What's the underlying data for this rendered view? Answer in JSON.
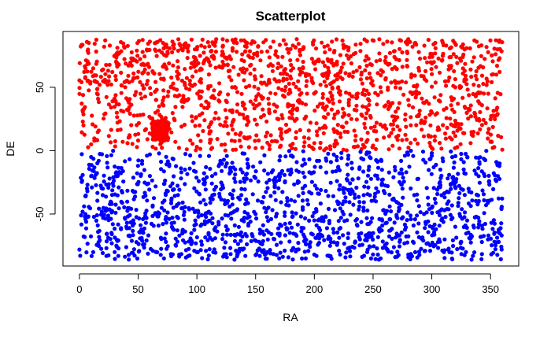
{
  "chart_data": {
    "type": "scatter",
    "title": "Scatterplot",
    "xlabel": "RA",
    "ylabel": "DE",
    "xlim": [
      -14,
      374
    ],
    "ylim": [
      -91,
      94
    ],
    "xticks": [
      0,
      50,
      100,
      150,
      200,
      250,
      300,
      350
    ],
    "yticks": [
      -50,
      0,
      50
    ],
    "grid": false,
    "legend": "none",
    "series": [
      {
        "color": "#ff0000",
        "x_range": [
          0,
          360
        ],
        "y_range": [
          0,
          88
        ],
        "approx_point_count": 1400,
        "values": [
          [
            8,
            85
          ],
          [
            22,
            87
          ],
          [
            38,
            82
          ],
          [
            60,
            86
          ],
          [
            75,
            78
          ],
          [
            100,
            80
          ],
          [
            122,
            82
          ],
          [
            134,
            85
          ],
          [
            185,
            88
          ],
          [
            215,
            86
          ],
          [
            262,
            86
          ],
          [
            280,
            88
          ],
          [
            303,
            85
          ],
          [
            325,
            82
          ],
          [
            356,
            80
          ],
          [
            5,
            58
          ],
          [
            15,
            45
          ],
          [
            28,
            62
          ],
          [
            45,
            55
          ],
          [
            65,
            20
          ],
          [
            68,
            15
          ],
          [
            72,
            22
          ],
          [
            90,
            40
          ],
          [
            110,
            35
          ],
          [
            130,
            50
          ],
          [
            150,
            40
          ],
          [
            170,
            55
          ],
          [
            185,
            25
          ],
          [
            200,
            45
          ],
          [
            220,
            30
          ],
          [
            240,
            60
          ],
          [
            260,
            20
          ],
          [
            280,
            40
          ],
          [
            300,
            30
          ],
          [
            320,
            50
          ],
          [
            340,
            25
          ],
          [
            355,
            60
          ],
          [
            10,
            5
          ],
          [
            50,
            8
          ],
          [
            100,
            3
          ],
          [
            150,
            2
          ],
          [
            200,
            6
          ],
          [
            250,
            4
          ],
          [
            300,
            2
          ],
          [
            350,
            7
          ]
        ]
      },
      {
        "color": "#0000ff",
        "x_range": [
          0,
          360
        ],
        "y_range": [
          -86,
          0
        ],
        "approx_point_count": 1400,
        "values": [
          [
            0,
            -78
          ],
          [
            30,
            -80
          ],
          [
            72,
            -85
          ],
          [
            85,
            -82
          ],
          [
            100,
            -80
          ],
          [
            132,
            -86
          ],
          [
            160,
            -80
          ],
          [
            200,
            -82
          ],
          [
            245,
            -80
          ],
          [
            255,
            -86
          ],
          [
            280,
            -82
          ],
          [
            315,
            -80
          ],
          [
            335,
            -83
          ],
          [
            357,
            -72
          ],
          [
            5,
            -50
          ],
          [
            20,
            -30
          ],
          [
            40,
            -60
          ],
          [
            60,
            -20
          ],
          [
            80,
            -45
          ],
          [
            110,
            -65
          ],
          [
            130,
            -35
          ],
          [
            150,
            -50
          ],
          [
            175,
            -25
          ],
          [
            200,
            -55
          ],
          [
            225,
            -40
          ],
          [
            250,
            -65
          ],
          [
            275,
            -30
          ],
          [
            300,
            -45
          ],
          [
            320,
            -60
          ],
          [
            345,
            -20
          ],
          [
            10,
            -5
          ],
          [
            60,
            -3
          ],
          [
            120,
            -8
          ],
          [
            180,
            -4
          ],
          [
            240,
            -6
          ],
          [
            300,
            -2
          ],
          [
            355,
            -9
          ]
        ]
      }
    ]
  }
}
